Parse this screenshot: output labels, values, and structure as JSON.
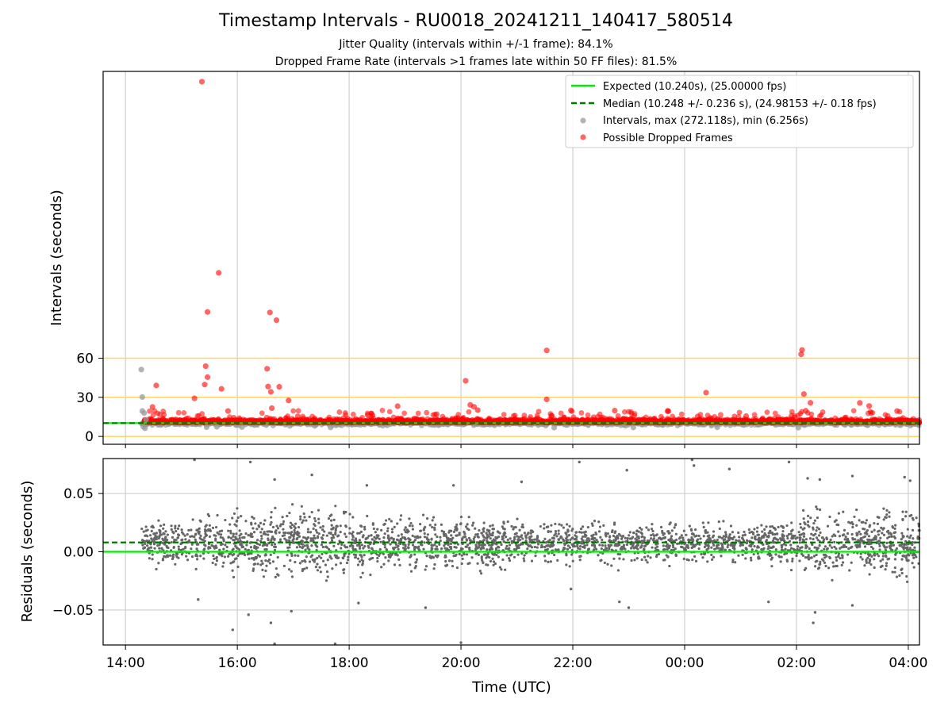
{
  "title": "Timestamp Intervals - RU0018_20241211_140417_580514",
  "subtitle_1": "Jitter Quality (intervals within +/-1 frame): 84.1%",
  "subtitle_2": "Dropped Frame Rate (intervals >1 frames late within 50 FF files): 81.5%",
  "colors": {
    "expected": "#00ee00",
    "median": "#007700",
    "intervals": "#999999",
    "dropped": "#ff0000",
    "residual": "#666666",
    "threshold": "#ffd35c",
    "grid": "#cfcfcf"
  },
  "chart_data": [
    {
      "type": "scatter",
      "panel": "top",
      "ylabel": "Intervals (seconds)",
      "xlim": [
        "13:36",
        "04:12"
      ],
      "ylim": [
        -6,
        280
      ],
      "yticks": [
        "0",
        "30",
        "60"
      ],
      "ytick_values": [
        0,
        30,
        60
      ],
      "threshold_lines": [
        0,
        30,
        60
      ],
      "grid": "vertical",
      "legend_position": "top-right",
      "legend": [
        "Expected (10.240s), (25.00000 fps)",
        "Median (10.248 +/- 0.236 s), (24.98153 +/- 0.18 fps)",
        "Intervals, max (272.118s), min (6.256s)",
        "Possible Dropped Frames"
      ],
      "expected_value": 10.24,
      "median_value": 10.248,
      "time_range": [
        "14:17",
        "04:12"
      ],
      "series": [
        {
          "name": "Possible Dropped Frames",
          "points": [
            [
              "15:22",
              272.1
            ],
            [
              "15:40",
              125.5
            ],
            [
              "15:28",
              95.5
            ],
            [
              "16:35",
              95.1
            ],
            [
              "16:42",
              89.2
            ],
            [
              "21:32",
              66.0
            ],
            [
              "02:06",
              66.3
            ],
            [
              "02:05",
              63.0
            ],
            [
              "15:26",
              53.9
            ],
            [
              "16:32",
              51.9
            ],
            [
              "15:28",
              45.5
            ],
            [
              "20:05",
              42.7
            ],
            [
              "14:33",
              39.1
            ],
            [
              "15:25",
              39.8
            ],
            [
              "16:45",
              38.1
            ],
            [
              "16:33",
              38.3
            ],
            [
              "15:43",
              36.5
            ],
            [
              "16:36",
              34.2
            ],
            [
              "00:23",
              33.6
            ],
            [
              "02:08",
              32.5
            ],
            [
              "15:14",
              29.2
            ],
            [
              "21:32",
              28.4
            ],
            [
              "16:55",
              27.6
            ],
            [
              "02:15",
              25.8
            ],
            [
              "03:08",
              25.7
            ],
            [
              "20:10",
              24.2
            ],
            [
              "03:18",
              23.4
            ],
            [
              "18:52",
              23.2
            ],
            [
              "20:14",
              22.7
            ],
            [
              "14:29",
              22.6
            ],
            [
              "16:37",
              21.7
            ],
            [
              "20:18",
              20.2
            ],
            [
              "21:58",
              20.0
            ],
            [
              "22:45",
              19.8
            ],
            [
              "02:10",
              19.7
            ],
            [
              "15:50",
              19.5
            ],
            [
              "03:48",
              19.5
            ],
            [
              "17:05",
              15.4
            ],
            [
              "18:20",
              16.5
            ],
            [
              "18:25",
              16.3
            ],
            [
              "19:34",
              17.0
            ],
            [
              "21:37",
              15.7
            ],
            [
              "00:14",
              15.3
            ],
            [
              "01:06",
              15.6
            ]
          ]
        },
        {
          "name": "Intervals, max (272.118s), min (6.256s)",
          "points": [
            [
              "14:17",
              51.3
            ],
            [
              "14:18",
              30.2
            ],
            [
              "14:18",
              19.5
            ],
            [
              "14:20",
              18.0
            ],
            [
              "14:22",
              12.8
            ],
            [
              "14:19",
              7.6
            ],
            [
              "14:21",
              6.3
            ],
            [
              "15:27",
              7.1
            ],
            [
              "15:38",
              7.4
            ],
            [
              "16:05",
              7.2
            ],
            [
              "17:40",
              6.9
            ],
            [
              "21:40",
              6.8
            ],
            [
              "23:05",
              6.9
            ],
            [
              "00:35",
              7.0
            ],
            [
              "02:02",
              6.7
            ]
          ]
        }
      ]
    },
    {
      "type": "scatter",
      "panel": "bottom",
      "ylabel": "Residuals (seconds)",
      "xlabel": "Time (UTC)",
      "ylim": [
        -0.08,
        0.08
      ],
      "yticks": [
        "−0.05",
        "0.00",
        "0.05"
      ],
      "ytick_values": [
        -0.05,
        0,
        0.05
      ],
      "xticks": [
        "14:00",
        "16:00",
        "18:00",
        "20:00",
        "22:00",
        "00:00",
        "02:00",
        "04:00"
      ],
      "grid": "both",
      "expected_value": 0.0,
      "median_value": 0.008,
      "residual_spread_sd": [
        [
          "14:17",
          0.011
        ],
        [
          "15:30",
          0.012
        ],
        [
          "16:30",
          0.018
        ],
        [
          "18:00",
          0.016
        ],
        [
          "20:00",
          0.013
        ],
        [
          "22:00",
          0.01
        ],
        [
          "00:00",
          0.01
        ],
        [
          "01:30",
          0.01
        ],
        [
          "02:20",
          0.016
        ],
        [
          "03:30",
          0.019
        ],
        [
          "04:12",
          0.022
        ]
      ],
      "series": [
        {
          "name": "Residuals",
          "points": [
            [
              "15:18",
              -0.041
            ],
            [
              "15:55",
              -0.067
            ],
            [
              "16:12",
              -0.054
            ],
            [
              "16:36",
              -0.061
            ],
            [
              "16:40",
              -0.079
            ],
            [
              "16:58",
              -0.051
            ],
            [
              "17:45",
              -0.079
            ],
            [
              "18:10",
              -0.044
            ],
            [
              "19:22",
              -0.048
            ],
            [
              "20:00",
              -0.078
            ],
            [
              "21:58",
              -0.032
            ],
            [
              "22:50",
              -0.043
            ],
            [
              "23:00",
              -0.048
            ],
            [
              "01:30",
              -0.043
            ],
            [
              "02:18",
              -0.061
            ],
            [
              "02:20",
              -0.052
            ],
            [
              "03:00",
              -0.046
            ],
            [
              "15:14",
              0.079
            ],
            [
              "16:14",
              0.077
            ],
            [
              "16:40",
              0.062
            ],
            [
              "17:20",
              0.066
            ],
            [
              "18:19",
              0.057
            ],
            [
              "19:52",
              0.057
            ],
            [
              "21:05",
              0.06
            ],
            [
              "22:07",
              0.077
            ],
            [
              "22:58",
              0.07
            ],
            [
              "00:08",
              0.079
            ],
            [
              "00:10",
              0.074
            ],
            [
              "00:48",
              0.071
            ],
            [
              "01:52",
              0.077
            ],
            [
              "02:12",
              0.063
            ],
            [
              "02:25",
              0.062
            ],
            [
              "03:00",
              0.065
            ],
            [
              "03:56",
              0.064
            ],
            [
              "04:02",
              0.061
            ]
          ]
        }
      ]
    }
  ]
}
